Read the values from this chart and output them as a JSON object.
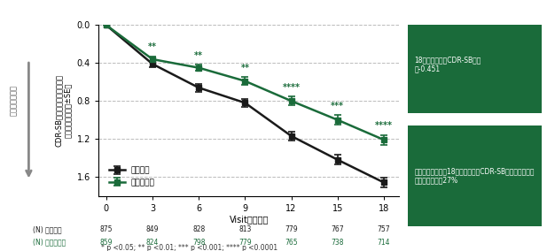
{
  "x": [
    0,
    3,
    6,
    9,
    12,
    15,
    18
  ],
  "placebo_y": [
    0.0,
    0.41,
    0.66,
    0.82,
    1.17,
    1.42,
    1.66
  ],
  "lecanemab_y": [
    0.0,
    0.36,
    0.45,
    0.59,
    0.8,
    1.0,
    1.21
  ],
  "placebo_se": [
    0.0,
    0.03,
    0.04,
    0.045,
    0.05,
    0.05,
    0.05
  ],
  "lecanemab_se": [
    0.0,
    0.03,
    0.035,
    0.04,
    0.045,
    0.05,
    0.05
  ],
  "placebo_color": "#1a1a1a",
  "lecanemab_color": "#1a6b3a",
  "placebo_label": "プラセボ",
  "lecanemab_label": "レカネマブ",
  "significance": [
    "",
    "**",
    "**",
    "**",
    "****",
    "***",
    "****"
  ],
  "xlabel": "Visit　（月）",
  "ylabel": "CDR-SBのベースラインからの\n調整平均変化量（±SE）",
  "ylim_min": 0.0,
  "ylim_max": 1.8,
  "yticks": [
    0.0,
    0.4,
    0.8,
    1.2,
    1.6
  ],
  "footnote": "* p <0.05; ** p <0.01; *** p <0.001; **** p <0.0001",
  "box1_text": "18ヵ月におけるCDR-SBの差\n：-0.451",
  "box2_text": "ベースラインかも18ヵ月におけるCDR-SBのプラセボに対\nする悪化抑制：27%",
  "box_bg": "#1a6b3a",
  "box_text_color": "#ffffff",
  "n_placebo": [
    875,
    849,
    828,
    813,
    779,
    767,
    757
  ],
  "n_lecanemab": [
    859,
    824,
    798,
    779,
    765,
    738,
    714
  ],
  "left_arrow_label": "臨床症状の悪化",
  "left_y_label": "CDR-SBのベースラインからの\n調整平均変化量（±SE）"
}
